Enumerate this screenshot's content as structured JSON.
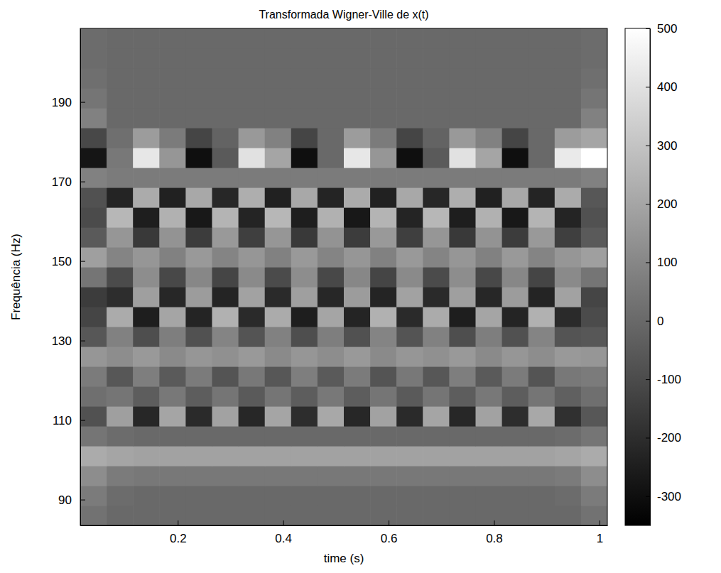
{
  "chart_data": {
    "type": "heatmap",
    "title": "Transformada Wigner-Ville de x(t)",
    "x_label": "time (s)",
    "y_label": "Frequência (Hz)",
    "color": "gray",
    "xlim": [
      0.015,
      1.015
    ],
    "ylim": [
      83.5,
      208.5
    ],
    "xticks": [
      0.2,
      0.4,
      0.6,
      0.8,
      1
    ],
    "yticks": [
      90,
      110,
      130,
      150,
      170,
      190
    ],
    "colorbar": {
      "range": [
        -350,
        500
      ],
      "ticks": [
        -300,
        -200,
        -100,
        0,
        100,
        200,
        300,
        400,
        500
      ]
    },
    "x": [
      0.04,
      0.09,
      0.14,
      0.19,
      0.24,
      0.29,
      0.34,
      0.39,
      0.44,
      0.49,
      0.54,
      0.59,
      0.64,
      0.69,
      0.74,
      0.79,
      0.84,
      0.89,
      0.94,
      0.99
    ],
    "y": [
      86,
      91,
      96,
      101,
      106,
      111,
      116,
      121,
      126,
      131,
      136,
      141,
      146,
      151,
      156,
      161,
      166,
      171,
      176,
      181,
      186,
      191,
      196,
      201,
      206
    ],
    "values": [
      [
        30,
        0,
        0,
        0,
        0,
        0,
        0,
        0,
        0,
        0,
        0,
        0,
        0,
        0,
        0,
        0,
        0,
        0,
        0,
        30
      ],
      [
        60,
        10,
        0,
        0,
        0,
        0,
        0,
        0,
        0,
        0,
        0,
        0,
        0,
        0,
        0,
        0,
        0,
        0,
        10,
        60
      ],
      [
        120,
        60,
        50,
        50,
        50,
        50,
        50,
        50,
        50,
        50,
        50,
        50,
        50,
        50,
        50,
        50,
        50,
        50,
        60,
        120
      ],
      [
        220,
        200,
        190,
        190,
        190,
        190,
        190,
        190,
        190,
        190,
        190,
        190,
        190,
        190,
        190,
        190,
        190,
        190,
        200,
        220
      ],
      [
        40,
        10,
        0,
        0,
        0,
        0,
        0,
        0,
        0,
        0,
        0,
        0,
        0,
        0,
        0,
        0,
        0,
        0,
        10,
        40
      ],
      [
        -80,
        180,
        -220,
        200,
        -210,
        190,
        -220,
        200,
        -200,
        210,
        -220,
        190,
        -210,
        200,
        -220,
        190,
        -200,
        210,
        -190,
        -60
      ],
      [
        20,
        40,
        -40,
        50,
        -40,
        40,
        -50,
        40,
        -40,
        50,
        -40,
        40,
        -50,
        40,
        -40,
        50,
        -40,
        40,
        -30,
        20
      ],
      [
        60,
        -60,
        70,
        -50,
        60,
        -70,
        50,
        -60,
        70,
        -50,
        60,
        -70,
        50,
        -60,
        70,
        -50,
        60,
        -70,
        50,
        60
      ],
      [
        150,
        120,
        160,
        110,
        150,
        130,
        160,
        110,
        150,
        120,
        160,
        110,
        150,
        130,
        160,
        110,
        150,
        120,
        160,
        150
      ],
      [
        -60,
        80,
        -90,
        70,
        -80,
        90,
        -70,
        80,
        -90,
        70,
        -80,
        90,
        -70,
        80,
        -90,
        70,
        -80,
        90,
        -70,
        -60
      ],
      [
        -120,
        220,
        -250,
        200,
        -230,
        240,
        -210,
        220,
        -250,
        200,
        -230,
        240,
        -210,
        220,
        -250,
        200,
        -230,
        240,
        -210,
        -100
      ],
      [
        -150,
        -200,
        180,
        -220,
        170,
        -230,
        190,
        -210,
        180,
        -220,
        170,
        -230,
        190,
        -210,
        180,
        -220,
        170,
        -230,
        190,
        -120
      ],
      [
        40,
        -100,
        120,
        -110,
        100,
        -120,
        110,
        -100,
        120,
        -110,
        100,
        -120,
        110,
        -100,
        120,
        -110,
        100,
        -120,
        110,
        40
      ],
      [
        180,
        90,
        150,
        80,
        160,
        90,
        150,
        80,
        160,
        90,
        150,
        80,
        160,
        90,
        150,
        80,
        160,
        90,
        150,
        180
      ],
      [
        -50,
        150,
        -160,
        140,
        -150,
        160,
        -140,
        150,
        -160,
        140,
        -150,
        160,
        -140,
        150,
        -160,
        140,
        -150,
        160,
        -140,
        -50
      ],
      [
        -100,
        260,
        -250,
        240,
        -270,
        250,
        -230,
        260,
        -250,
        240,
        -270,
        250,
        -230,
        260,
        -250,
        240,
        -270,
        250,
        -230,
        -80
      ],
      [
        -80,
        -230,
        220,
        -240,
        210,
        -220,
        230,
        -240,
        210,
        -230,
        220,
        -240,
        210,
        -220,
        230,
        -240,
        210,
        -230,
        220,
        -60
      ],
      [
        80,
        60,
        60,
        60,
        60,
        60,
        60,
        60,
        60,
        60,
        60,
        60,
        60,
        60,
        60,
        60,
        60,
        60,
        60,
        80
      ],
      [
        -280,
        50,
        420,
        150,
        -300,
        -50,
        400,
        200,
        -300,
        0,
        420,
        150,
        -300,
        -50,
        400,
        200,
        -300,
        0,
        430,
        500
      ],
      [
        -110,
        20,
        170,
        60,
        -120,
        -20,
        160,
        80,
        -120,
        0,
        170,
        60,
        -120,
        -20,
        160,
        80,
        -120,
        0,
        170,
        200
      ],
      [
        80,
        0,
        0,
        0,
        0,
        0,
        0,
        0,
        0,
        0,
        0,
        0,
        0,
        0,
        0,
        0,
        0,
        0,
        0,
        80
      ],
      [
        40,
        0,
        0,
        0,
        0,
        0,
        0,
        0,
        0,
        0,
        0,
        0,
        0,
        0,
        0,
        0,
        0,
        0,
        0,
        40
      ],
      [
        20,
        0,
        0,
        0,
        0,
        0,
        0,
        0,
        0,
        0,
        0,
        0,
        0,
        0,
        0,
        0,
        0,
        0,
        0,
        20
      ],
      [
        10,
        0,
        0,
        0,
        0,
        0,
        0,
        0,
        0,
        0,
        0,
        0,
        0,
        0,
        0,
        0,
        0,
        0,
        0,
        10
      ],
      [
        10,
        0,
        0,
        0,
        0,
        0,
        0,
        0,
        0,
        0,
        0,
        0,
        0,
        0,
        0,
        0,
        0,
        0,
        0,
        10
      ]
    ]
  }
}
